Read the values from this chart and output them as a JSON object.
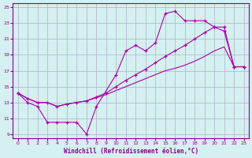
{
  "xlabel": "Windchill (Refroidissement éolien,°C)",
  "bg_color": "#d4f0f0",
  "grid_color": "#b0b0cc",
  "line_color": "#aa00aa",
  "xlim": [
    -0.5,
    23.5
  ],
  "ylim": [
    8.5,
    25.5
  ],
  "xticks": [
    0,
    1,
    2,
    3,
    4,
    5,
    6,
    7,
    8,
    9,
    10,
    11,
    12,
    13,
    14,
    15,
    16,
    17,
    18,
    19,
    20,
    21,
    22,
    23
  ],
  "yticks": [
    9,
    11,
    13,
    15,
    17,
    19,
    21,
    23,
    25
  ],
  "curve1_x": [
    0,
    1,
    2,
    3,
    4,
    5,
    6,
    7,
    8,
    10,
    11,
    12,
    13,
    14,
    15,
    16,
    17,
    18,
    19,
    20,
    21,
    22,
    23
  ],
  "curve1_y": [
    14.2,
    13.0,
    12.5,
    10.5,
    10.5,
    10.5,
    10.5,
    9.0,
    12.5,
    16.5,
    19.5,
    20.2,
    19.5,
    20.5,
    24.2,
    24.5,
    23.3,
    23.3,
    23.3,
    22.5,
    22.0,
    17.5,
    17.5
  ],
  "curve2_x": [
    0,
    1,
    2,
    3,
    4,
    5,
    6,
    7,
    8,
    9,
    10,
    11,
    12,
    13,
    14,
    15,
    16,
    17,
    18,
    19,
    20,
    21,
    22,
    23
  ],
  "curve2_y": [
    14.2,
    13.5,
    13.0,
    13.0,
    12.5,
    12.8,
    13.0,
    13.2,
    13.7,
    14.2,
    15.0,
    15.8,
    16.5,
    17.2,
    18.0,
    18.8,
    19.5,
    20.2,
    21.0,
    21.8,
    22.5,
    22.5,
    17.5,
    17.5
  ],
  "curve3_x": [
    0,
    1,
    2,
    3,
    4,
    5,
    6,
    7,
    8,
    9,
    10,
    11,
    12,
    13,
    14,
    15,
    16,
    17,
    18,
    19,
    20,
    21,
    22,
    23
  ],
  "curve3_y": [
    14.2,
    13.5,
    13.0,
    13.0,
    12.5,
    12.8,
    13.0,
    13.2,
    13.6,
    14.0,
    14.5,
    15.0,
    15.5,
    16.0,
    16.5,
    17.0,
    17.3,
    17.7,
    18.2,
    18.8,
    19.5,
    20.0,
    17.5,
    17.5
  ]
}
